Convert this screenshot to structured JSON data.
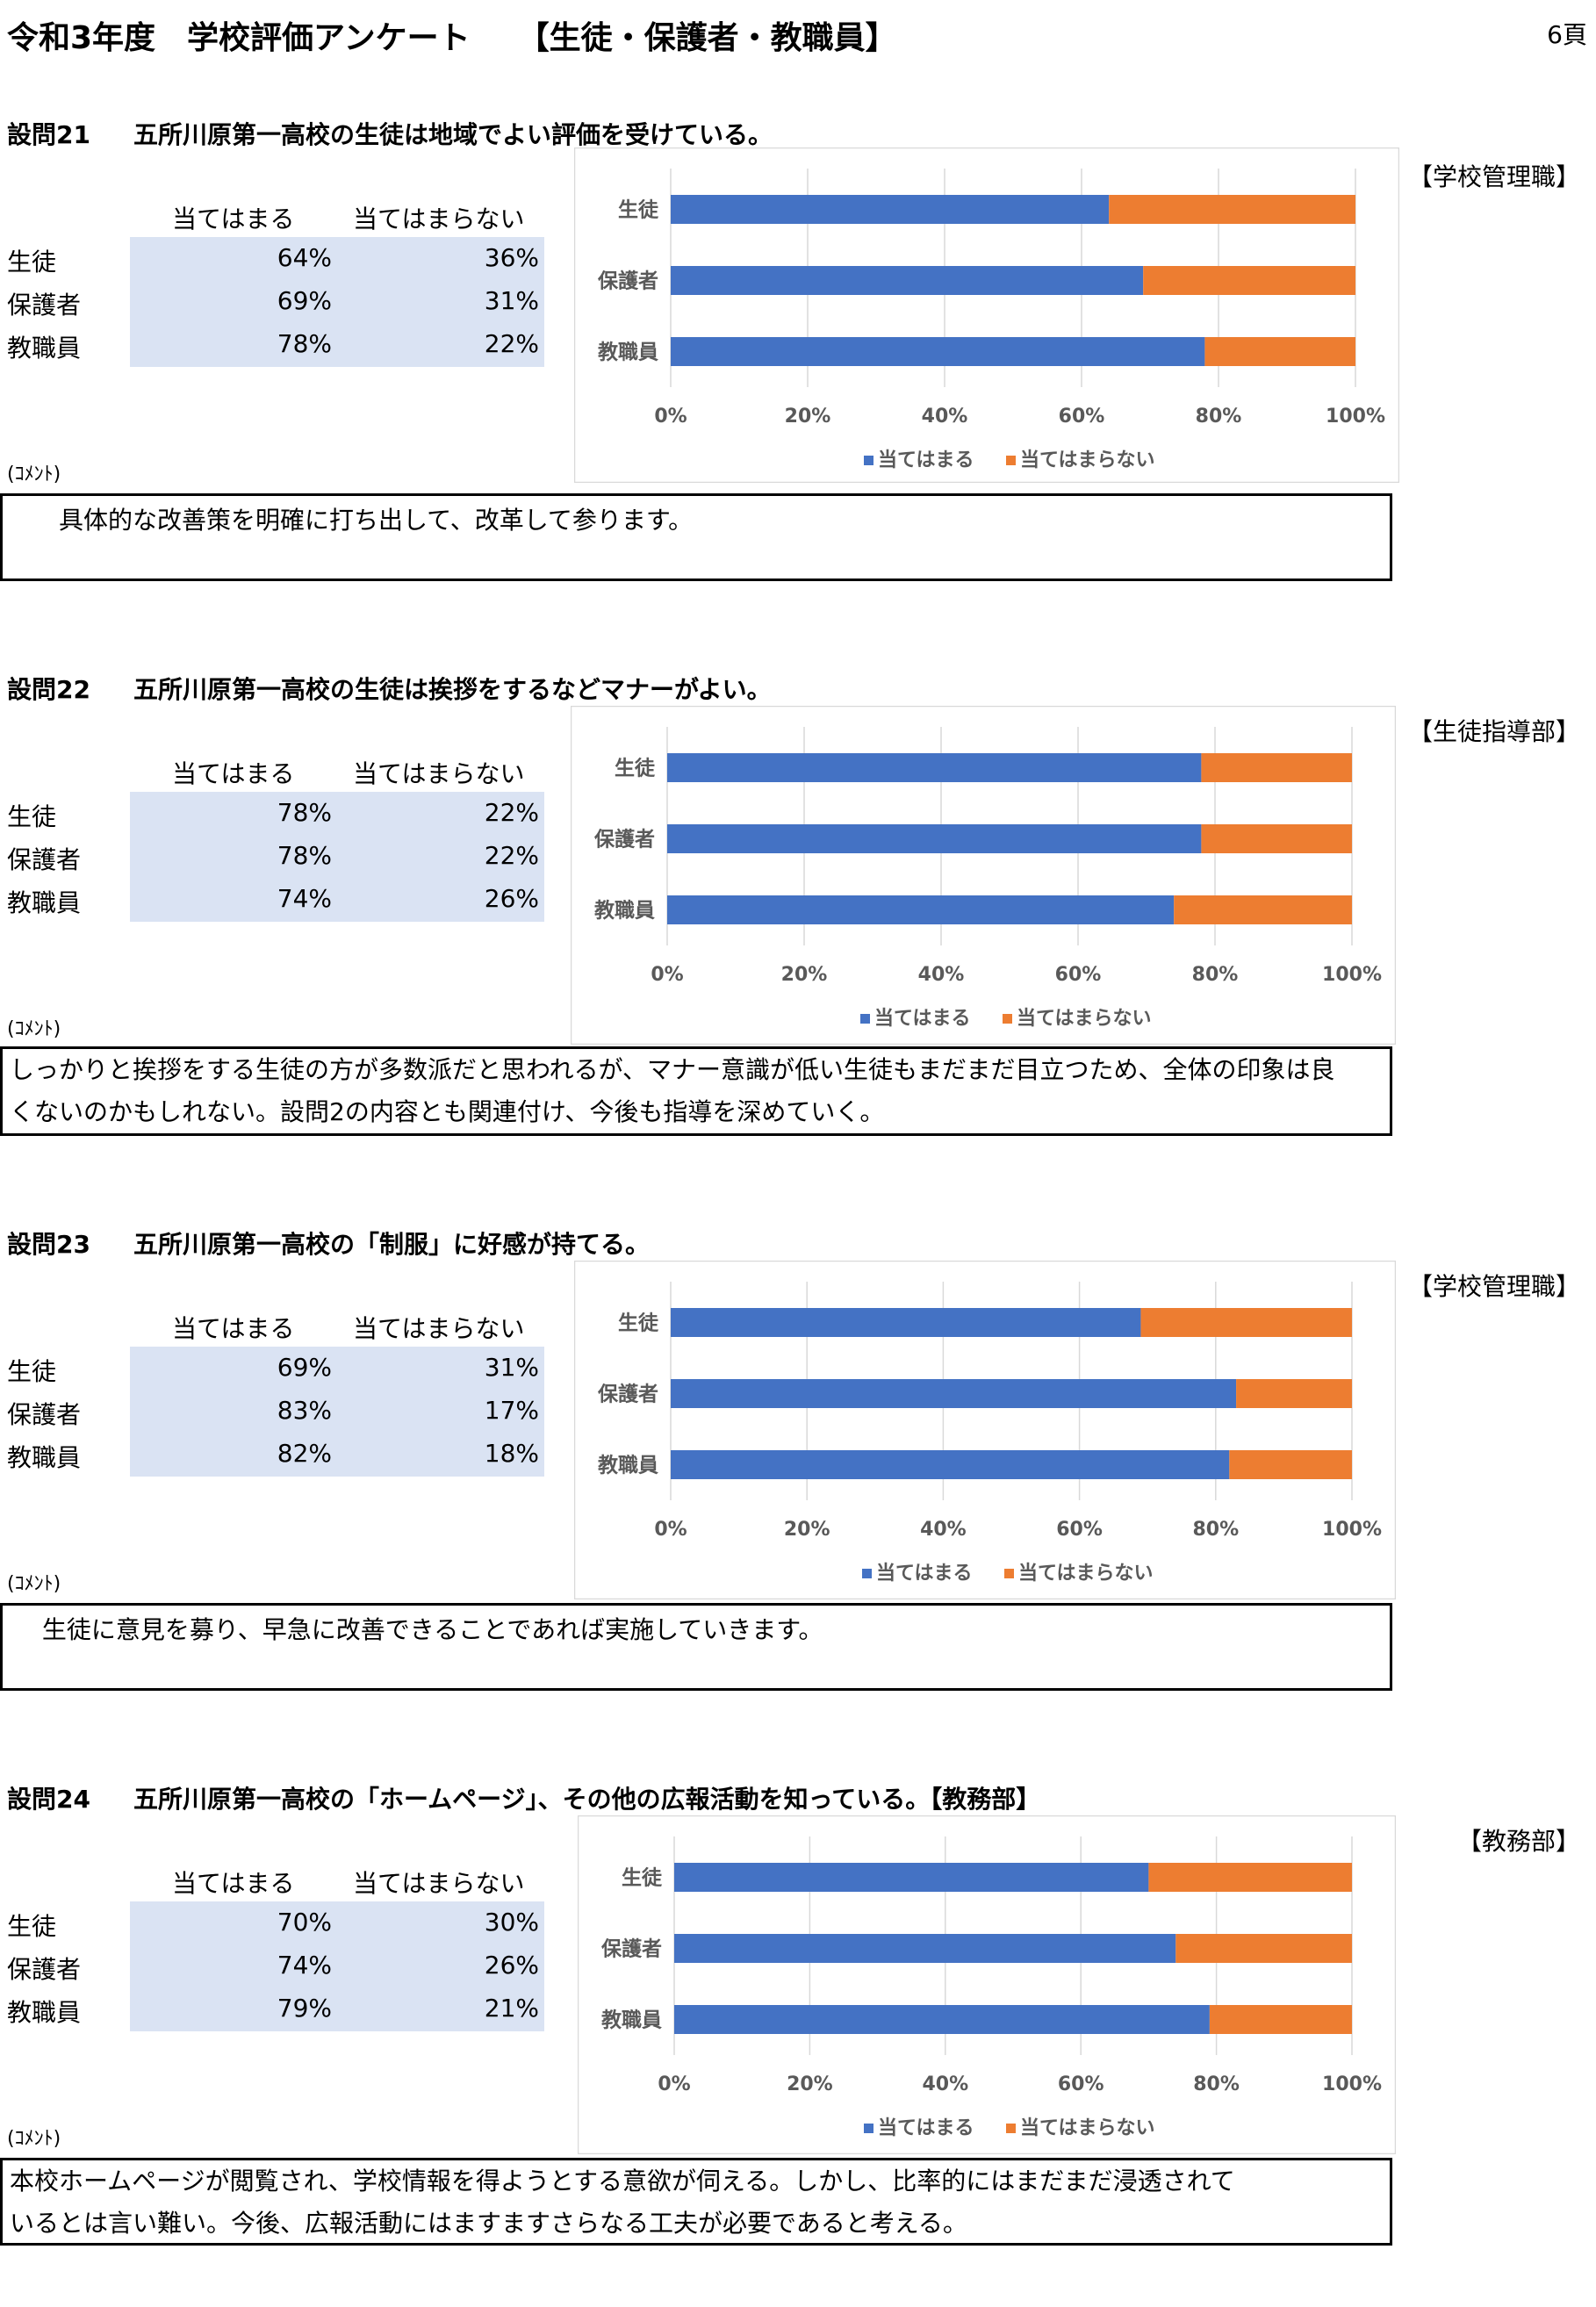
{
  "header": {
    "title": "令和3年度　学校評価アンケート　　【生徒・保護者・教職員】",
    "page": "6頁"
  },
  "table_headers": [
    "当てはまる",
    "当てはまらない"
  ],
  "comment_label": "(ｺﾒﾝﾄ)",
  "legend": [
    "当てはまる",
    "当てはまらない"
  ],
  "x_ticks": [
    "0%",
    "20%",
    "40%",
    "60%",
    "80%",
    "100%"
  ],
  "colors": {
    "yes": "#4472c4",
    "no": "#ed7d31",
    "table_bg": "#dae3f3"
  },
  "questions": [
    {
      "number": "設問21",
      "text": "五所川原第一高校の生徒は地域でよい評価を受けている。",
      "dept": "【学校管理職】",
      "rows": [
        {
          "label": "生徒",
          "yes": "64%",
          "no": "36%"
        },
        {
          "label": "保護者",
          "yes": "69%",
          "no": "31%"
        },
        {
          "label": "教職員",
          "yes": "78%",
          "no": "22%"
        }
      ],
      "comment": [
        "　　具体的な改善策を明確に打ち出して、改革して参ります。"
      ]
    },
    {
      "number": "設問22",
      "text": "五所川原第一高校の生徒は挨拶をするなどマナーがよい。",
      "dept": "【生徒指導部】",
      "rows": [
        {
          "label": "生徒",
          "yes": "78%",
          "no": "22%"
        },
        {
          "label": "保護者",
          "yes": "78%",
          "no": "22%"
        },
        {
          "label": "教職員",
          "yes": "74%",
          "no": "26%"
        }
      ],
      "comment": [
        "しっかりと挨拶をする生徒の方が多数派だと思われるが、マナー意識が低い生徒もまだまだ目立つため、全体の印象は良",
        "くないのかもしれない。設問2の内容とも関連付け、今後も指導を深めていく。"
      ]
    },
    {
      "number": "設問23",
      "text": "五所川原第一高校の「制服」に好感が持てる。",
      "dept": "【学校管理職】",
      "rows": [
        {
          "label": "生徒",
          "yes": "69%",
          "no": "31%"
        },
        {
          "label": "保護者",
          "yes": "83%",
          "no": "17%"
        },
        {
          "label": "教職員",
          "yes": "82%",
          "no": "18%"
        }
      ],
      "comment": [
        "　 生徒に意見を募り、早急に改善できることであれば実施していきます。"
      ]
    },
    {
      "number": "設問24",
      "text": "五所川原第一高校の「ホームページ」、その他の広報活動を知っている。【教務部】",
      "dept": "【教務部】",
      "rows": [
        {
          "label": "生徒",
          "yes": "70%",
          "no": "30%"
        },
        {
          "label": "保護者",
          "yes": "74%",
          "no": "26%"
        },
        {
          "label": "教職員",
          "yes": "79%",
          "no": "21%"
        }
      ],
      "comment": [
        "本校ホームページが閲覧され、学校情報を得ようとする意欲が伺える。しかし、比率的にはまだまだ浸透されて",
        "いるとは言い難い。今後、広報活動にはますますさらなる工夫が必要であると考える。"
      ]
    }
  ],
  "chart_data": [
    {
      "type": "bar",
      "stacked": true,
      "orientation": "horizontal",
      "categories": [
        "生徒",
        "保護者",
        "教職員"
      ],
      "series": [
        {
          "name": "当てはまる",
          "values": [
            64,
            69,
            78
          ]
        },
        {
          "name": "当てはまらない",
          "values": [
            36,
            31,
            22
          ]
        }
      ],
      "xlim": [
        0,
        100
      ],
      "grid": true,
      "legend": "bottom"
    },
    {
      "type": "bar",
      "stacked": true,
      "orientation": "horizontal",
      "categories": [
        "生徒",
        "保護者",
        "教職員"
      ],
      "series": [
        {
          "name": "当てはまる",
          "values": [
            78,
            78,
            74
          ]
        },
        {
          "name": "当てはまらない",
          "values": [
            22,
            22,
            26
          ]
        }
      ],
      "xlim": [
        0,
        100
      ],
      "grid": true,
      "legend": "bottom"
    },
    {
      "type": "bar",
      "stacked": true,
      "orientation": "horizontal",
      "categories": [
        "生徒",
        "保護者",
        "教職員"
      ],
      "series": [
        {
          "name": "当てはまる",
          "values": [
            69,
            83,
            82
          ]
        },
        {
          "name": "当てはまらない",
          "values": [
            31,
            17,
            18
          ]
        }
      ],
      "xlim": [
        0,
        100
      ],
      "grid": true,
      "legend": "bottom"
    },
    {
      "type": "bar",
      "stacked": true,
      "orientation": "horizontal",
      "categories": [
        "生徒",
        "保護者",
        "教職員"
      ],
      "series": [
        {
          "name": "当てはまる",
          "values": [
            70,
            74,
            79
          ]
        },
        {
          "name": "当てはまらない",
          "values": [
            30,
            26,
            21
          ]
        }
      ],
      "xlim": [
        0,
        100
      ],
      "grid": true,
      "legend": "bottom"
    }
  ]
}
